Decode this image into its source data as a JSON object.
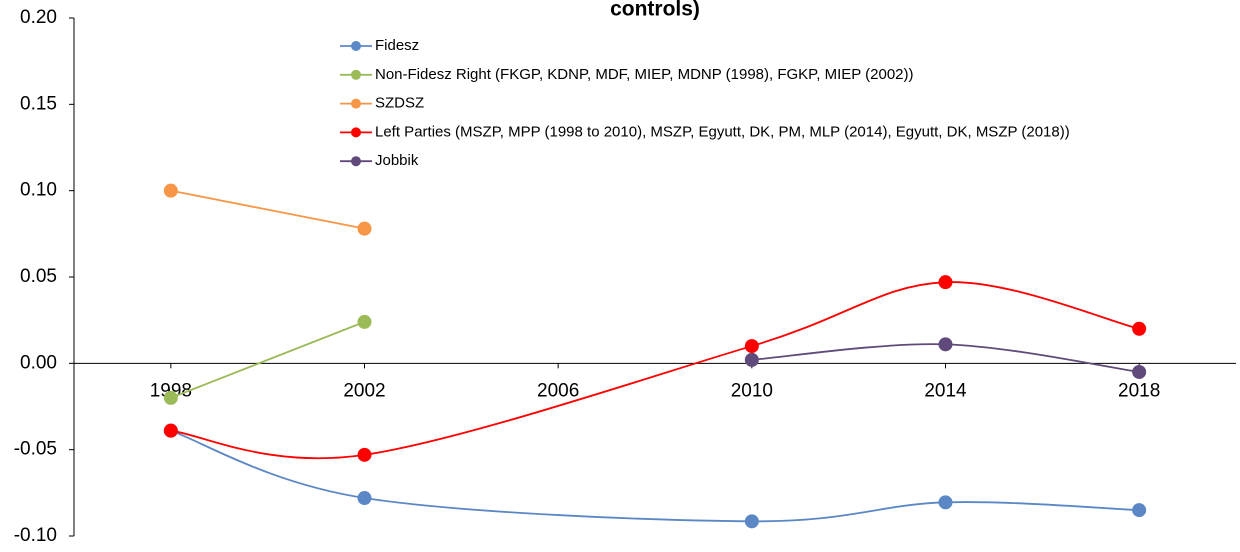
{
  "chart_data": {
    "type": "line",
    "title": "controls)",
    "smooth": true,
    "xlim": [
      1996,
      2020
    ],
    "xticks": [
      1998,
      2002,
      2006,
      2010,
      2014,
      2018
    ],
    "ylim": [
      -0.1,
      0.2
    ],
    "yticks": [
      {
        "value": -0.1,
        "label": "-0.10"
      },
      {
        "value": -0.05,
        "label": "-0.05"
      },
      {
        "value": 0,
        "label": "0.00"
      },
      {
        "value": 0.05,
        "label": "0.05"
      },
      {
        "value": 0.1,
        "label": "0.10"
      },
      {
        "value": 0.15,
        "label": "0.15"
      },
      {
        "value": 0.2,
        "label": "0.20"
      }
    ],
    "grid": false,
    "legend": "top",
    "series": [
      {
        "name": "Fidesz",
        "color": "#5b87c6",
        "x": [
          1998,
          2002,
          2010,
          2014,
          2018
        ],
        "values": [
          -0.039,
          -0.078,
          -0.0915,
          -0.0805,
          -0.085
        ]
      },
      {
        "name": "Non-Fidesz Right (FKGP, KDNP, MDF, MIEP, MDNP (1998), FGKP, MIEP (2002))",
        "color": "#9bbb59",
        "x": [
          1998,
          2002
        ],
        "values": [
          -0.02,
          0.024
        ]
      },
      {
        "name": "SZDSZ",
        "color": "#f79646",
        "x": [
          1998,
          2002
        ],
        "values": [
          0.1,
          0.078
        ]
      },
      {
        "name": "Left Parties (MSZP, MPP (1998 to 2010), MSZP, Egyutt, DK, PM, MLP (2014), Egyutt, DK, MSZP (2018))",
        "color": "#ff0000",
        "x": [
          1998,
          2002,
          2010,
          2014,
          2018
        ],
        "values": [
          -0.039,
          -0.053,
          0.01,
          0.047,
          0.02
        ]
      },
      {
        "name": "Jobbik",
        "color": "#604a7b",
        "x": [
          2010,
          2014,
          2018
        ],
        "values": [
          0.002,
          0.011,
          -0.005
        ]
      }
    ]
  }
}
